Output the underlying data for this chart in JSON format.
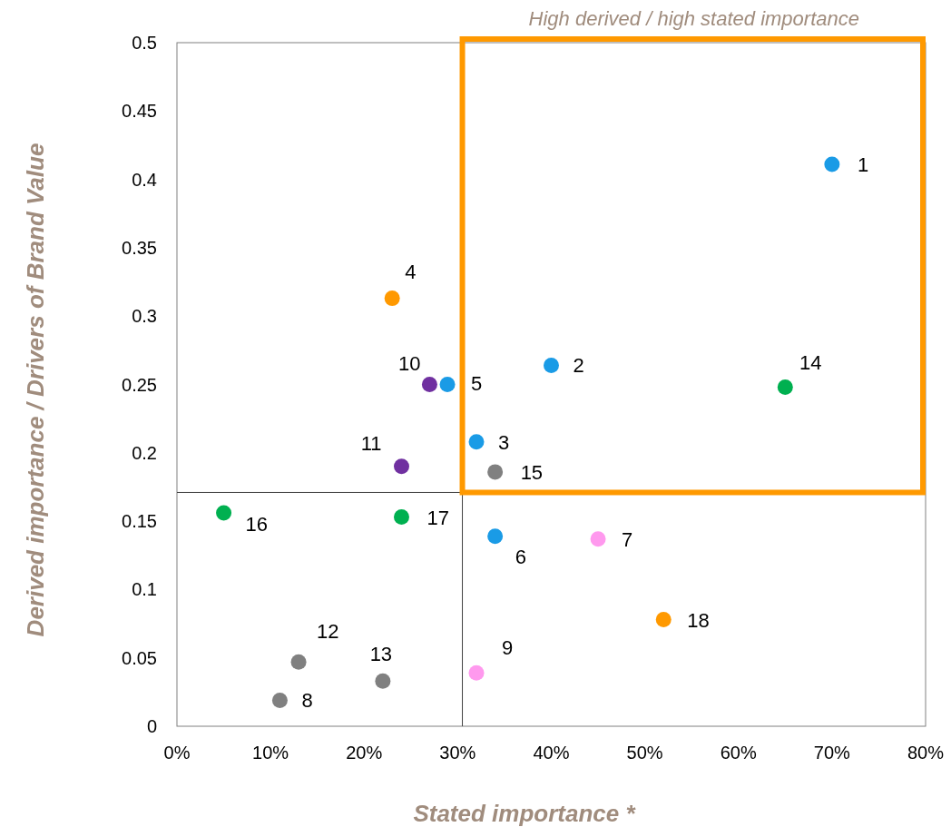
{
  "chart_data": {
    "type": "scatter",
    "xlabel": "Stated importance *",
    "ylabel": "Derived importance / Drivers of Brand Value",
    "annotations": [
      "High derived / high stated importance"
    ],
    "series": [
      {
        "name": "1",
        "color": "#1a9be6",
        "x": [
          70
        ],
        "values": [
          0.411
        ]
      },
      {
        "name": "2",
        "color": "#1a9be6",
        "x": [
          40
        ],
        "values": [
          0.264
        ]
      },
      {
        "name": "3",
        "color": "#1a9be6",
        "x": [
          32
        ],
        "values": [
          0.208
        ]
      },
      {
        "name": "4",
        "color": "#ff9900",
        "x": [
          23
        ],
        "values": [
          0.313
        ]
      },
      {
        "name": "5",
        "color": "#1a9be6",
        "x": [
          28.9
        ],
        "values": [
          0.25
        ]
      },
      {
        "name": "6",
        "color": "#1a9be6",
        "x": [
          34
        ],
        "values": [
          0.139
        ]
      },
      {
        "name": "7",
        "color": "#ff99ee",
        "x": [
          45
        ],
        "values": [
          0.137
        ]
      },
      {
        "name": "8",
        "color": "#808080",
        "x": [
          11
        ],
        "values": [
          0.019
        ]
      },
      {
        "name": "9",
        "color": "#ff99ee",
        "x": [
          32
        ],
        "values": [
          0.039
        ]
      },
      {
        "name": "10",
        "color": "#7030a0",
        "x": [
          27
        ],
        "values": [
          0.25
        ]
      },
      {
        "name": "11",
        "color": "#7030a0",
        "x": [
          24
        ],
        "values": [
          0.19
        ]
      },
      {
        "name": "12",
        "color": "#808080",
        "x": [
          13
        ],
        "values": [
          0.047
        ]
      },
      {
        "name": "13",
        "color": "#808080",
        "x": [
          22
        ],
        "values": [
          0.033
        ]
      },
      {
        "name": "14",
        "color": "#00b050",
        "x": [
          65
        ],
        "values": [
          0.248
        ]
      },
      {
        "name": "15",
        "color": "#808080",
        "x": [
          34
        ],
        "values": [
          0.186
        ]
      },
      {
        "name": "16",
        "color": "#00b050",
        "x": [
          5
        ],
        "values": [
          0.156
        ]
      },
      {
        "name": "17",
        "color": "#00b050",
        "x": [
          24
        ],
        "values": [
          0.153
        ]
      },
      {
        "name": "18",
        "color": "#ff9900",
        "x": [
          52
        ],
        "values": [
          0.078
        ]
      }
    ],
    "xlim": [
      0,
      80
    ],
    "xticks": [
      {
        "value": 0,
        "label": "0%"
      },
      {
        "value": 10,
        "label": "10%"
      },
      {
        "value": 20,
        "label": "20%"
      },
      {
        "value": 30,
        "label": "30%"
      },
      {
        "value": 40,
        "label": "40%"
      },
      {
        "value": 50,
        "label": "50%"
      },
      {
        "value": 60,
        "label": "60%"
      },
      {
        "value": 70,
        "label": "70%"
      },
      {
        "value": 80,
        "label": "80%"
      }
    ],
    "ylim": [
      0,
      0.5
    ],
    "yticks": [
      0,
      0.05,
      0.1,
      0.15,
      0.2,
      0.25,
      0.3,
      0.35,
      0.4,
      0.45,
      0.5
    ],
    "ref_lines": [
      {
        "axis": "x",
        "value": 30.5,
        "color": "#404040"
      },
      {
        "axis": "y",
        "value": 0.171,
        "color": "#404040"
      }
    ],
    "marker": "circle",
    "grid": false
  }
}
